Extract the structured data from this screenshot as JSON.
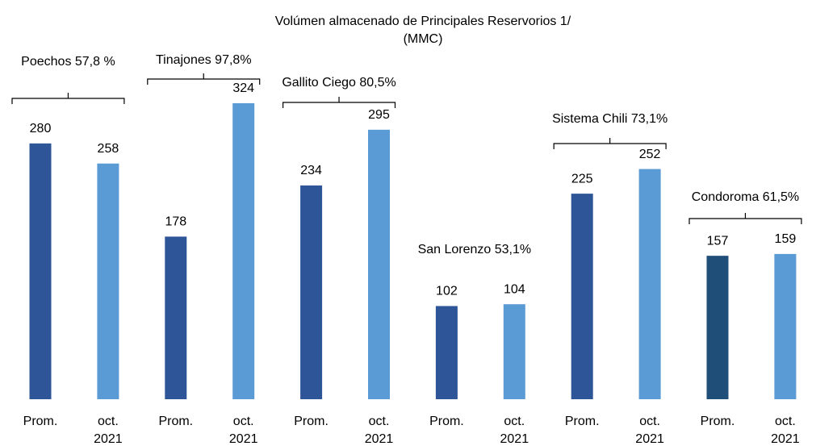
{
  "chart_data": {
    "type": "grouped-bar",
    "title": "Volúmen almacenado de Principales Reservorios 1/",
    "subtitle": "(MMC)",
    "categories": [
      [
        "Prom."
      ],
      [
        "oct.",
        "2021"
      ]
    ],
    "groups": [
      {
        "label": "Poechos 57,8 %",
        "values": [
          280,
          258
        ],
        "colors": [
          "#2E5597",
          "#5B9BD5"
        ]
      },
      {
        "label": "Tinajones 97,8%",
        "values": [
          178,
          324
        ],
        "colors": [
          "#2E5597",
          "#5B9BD5"
        ]
      },
      {
        "label": "Gallito Ciego 80,5%",
        "values": [
          234,
          295
        ],
        "colors": [
          "#2E5597",
          "#5B9BD5"
        ]
      },
      {
        "label": "San Lorenzo 53,1%",
        "values": [
          102,
          104
        ],
        "colors": [
          "#2E5597",
          "#5B9BD5"
        ]
      },
      {
        "label": "Sistema Chili 73,1%",
        "values": [
          225,
          252
        ],
        "colors": [
          "#2E5597",
          "#5B9BD5"
        ]
      },
      {
        "label": "Condoroma 61,5%",
        "values": [
          157,
          159
        ],
        "colors": [
          "#1F4E79",
          "#5B9BD5"
        ]
      }
    ]
  }
}
